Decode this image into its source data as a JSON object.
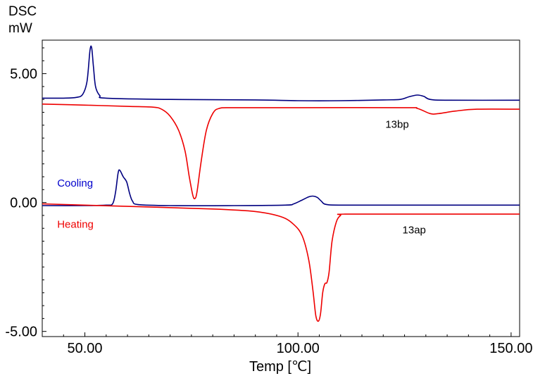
{
  "chart_data": {
    "type": "line",
    "ylabel_line1": "DSC",
    "ylabel_line2": "mW",
    "xlabel": "Temp [℃]",
    "xlim": [
      40,
      152
    ],
    "ylim": [
      -5.2,
      6.3
    ],
    "xticks": [
      50,
      100,
      150
    ],
    "xtick_labels": [
      "50.00",
      "100.00",
      "150.00"
    ],
    "yticks": [
      5,
      0,
      -5
    ],
    "ytick_labels": [
      "5.00",
      "0.00",
      "-5.00"
    ],
    "grid": false,
    "annotations": [
      {
        "text": "Cooling",
        "color": "#0000cc",
        "x": 43.5,
        "y": 0.62
      },
      {
        "text": "Heating",
        "color": "#ee0000",
        "x": 43.5,
        "y": -0.98
      },
      {
        "text": "13bp",
        "color": "#000000",
        "x": 120.5,
        "y": 2.9
      },
      {
        "text": "13ap",
        "color": "#000000",
        "x": 124.5,
        "y": -1.2
      }
    ],
    "series": [
      {
        "name": "Cooling",
        "sample": "13bp",
        "color": "#000080",
        "points": [
          [
            40,
            4.05
          ],
          [
            45,
            4.05
          ],
          [
            48,
            4.08
          ],
          [
            49.5,
            4.2
          ],
          [
            50.5,
            4.7
          ],
          [
            51.2,
            5.9
          ],
          [
            51.6,
            6.0
          ],
          [
            52,
            5.3
          ],
          [
            52.5,
            4.5
          ],
          [
            53.5,
            4.15
          ],
          [
            55,
            4.05
          ],
          [
            70,
            4.0
          ],
          [
            90,
            3.98
          ],
          [
            100,
            3.95
          ],
          [
            110,
            3.95
          ],
          [
            120,
            3.98
          ],
          [
            124,
            4.0
          ],
          [
            126,
            4.1
          ],
          [
            128,
            4.17
          ],
          [
            129.5,
            4.12
          ],
          [
            131,
            4.0
          ],
          [
            135,
            3.97
          ],
          [
            152,
            3.97
          ]
        ]
      },
      {
        "name": "Heating",
        "sample": "13bp",
        "color": "#ee0000",
        "points": [
          [
            40,
            3.82
          ],
          [
            50,
            3.78
          ],
          [
            60,
            3.73
          ],
          [
            66,
            3.7
          ],
          [
            68,
            3.62
          ],
          [
            70,
            3.35
          ],
          [
            72,
            2.8
          ],
          [
            73.5,
            2.0
          ],
          [
            74.5,
            1.0
          ],
          [
            75.3,
            0.3
          ],
          [
            75.8,
            0.15
          ],
          [
            76.3,
            0.4
          ],
          [
            77.2,
            1.5
          ],
          [
            78.5,
            2.8
          ],
          [
            80,
            3.45
          ],
          [
            81.5,
            3.65
          ],
          [
            85,
            3.68
          ],
          [
            100,
            3.68
          ],
          [
            125,
            3.68
          ],
          [
            128,
            3.65
          ],
          [
            131,
            3.45
          ],
          [
            133,
            3.45
          ],
          [
            137,
            3.55
          ],
          [
            142,
            3.62
          ],
          [
            152,
            3.62
          ]
        ]
      },
      {
        "name": "Cooling",
        "sample": "13ap",
        "color": "#000080",
        "points": [
          [
            40,
            -0.12
          ],
          [
            50,
            -0.12
          ],
          [
            55,
            -0.1
          ],
          [
            56.5,
            -0.05
          ],
          [
            57.2,
            0.4
          ],
          [
            57.8,
            1.15
          ],
          [
            58.2,
            1.25
          ],
          [
            59,
            1.0
          ],
          [
            59.8,
            0.8
          ],
          [
            60.5,
            0.35
          ],
          [
            61.2,
            0.05
          ],
          [
            62.5,
            -0.08
          ],
          [
            70,
            -0.12
          ],
          [
            85,
            -0.12
          ],
          [
            97,
            -0.1
          ],
          [
            99,
            -0.05
          ],
          [
            101,
            0.1
          ],
          [
            102.5,
            0.22
          ],
          [
            103.5,
            0.25
          ],
          [
            104.5,
            0.2
          ],
          [
            105.5,
            0.05
          ],
          [
            106.5,
            -0.07
          ],
          [
            110,
            -0.1
          ],
          [
            125,
            -0.1
          ],
          [
            152,
            -0.1
          ]
        ]
      },
      {
        "name": "Heating",
        "sample": "13ap",
        "color": "#ee0000",
        "points": [
          [
            40,
            -0.05
          ],
          [
            60,
            -0.15
          ],
          [
            80,
            -0.25
          ],
          [
            90,
            -0.35
          ],
          [
            96,
            -0.55
          ],
          [
            99,
            -0.85
          ],
          [
            101,
            -1.3
          ],
          [
            102.5,
            -2.2
          ],
          [
            103.5,
            -3.4
          ],
          [
            104.2,
            -4.4
          ],
          [
            104.8,
            -4.6
          ],
          [
            105.3,
            -4.3
          ],
          [
            105.8,
            -3.5
          ],
          [
            106.3,
            -3.15
          ],
          [
            106.8,
            -3.1
          ],
          [
            107.3,
            -2.7
          ],
          [
            108,
            -1.5
          ],
          [
            109,
            -0.75
          ],
          [
            110,
            -0.5
          ],
          [
            111,
            -0.45
          ],
          [
            130,
            -0.45
          ],
          [
            152,
            -0.45
          ]
        ]
      }
    ]
  }
}
